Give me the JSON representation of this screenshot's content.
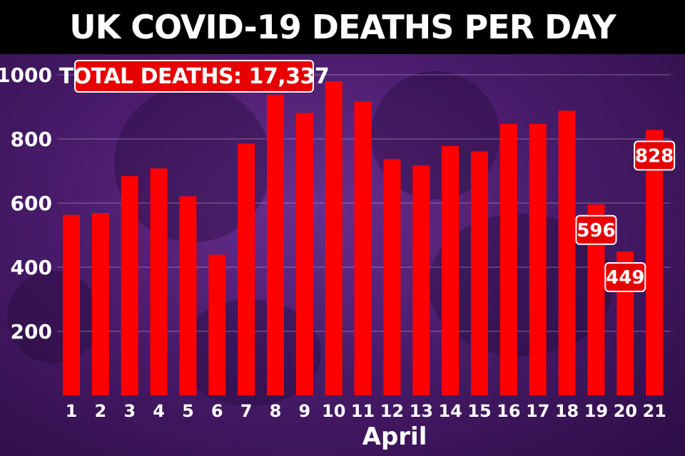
{
  "title": "UK COVID-19 DEATHS PER DAY",
  "total_label": "TOTAL DEATHS: 17,337",
  "colors": {
    "bar": "#ff0000",
    "label_box": "#e60000",
    "title_bg": "#000000",
    "text": "#ffffff"
  },
  "chart_data": {
    "type": "bar",
    "title": "UK COVID-19 DEATHS PER DAY",
    "xlabel": "April",
    "ylabel": "",
    "ylim": [
      0,
      1000
    ],
    "yticks": [
      200,
      400,
      600,
      800,
      1000
    ],
    "grid": true,
    "categories": [
      "1",
      "2",
      "3",
      "4",
      "5",
      "6",
      "7",
      "8",
      "9",
      "10",
      "11",
      "12",
      "13",
      "14",
      "15",
      "16",
      "17",
      "18",
      "19",
      "20",
      "21"
    ],
    "values": [
      563,
      569,
      684,
      708,
      621,
      439,
      786,
      938,
      881,
      980,
      917,
      737,
      717,
      778,
      761,
      847,
      847,
      888,
      596,
      449,
      828
    ],
    "data_labels": [
      {
        "category": "19",
        "text": "596"
      },
      {
        "category": "20",
        "text": "449"
      },
      {
        "category": "21",
        "text": "828"
      }
    ],
    "annotations": [
      "TOTAL DEATHS: 17,337"
    ]
  }
}
